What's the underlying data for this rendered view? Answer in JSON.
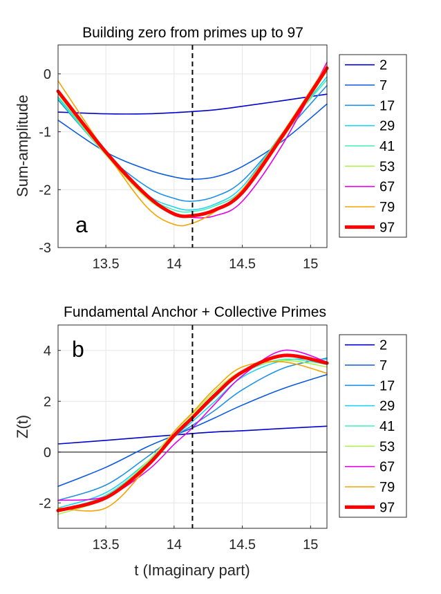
{
  "chart_data": [
    {
      "type": "line",
      "panel_label": "a",
      "title": "Building zero from primes up to 97",
      "xlabel": "",
      "ylabel": "Sum-amplitude",
      "xlim": [
        13.15,
        15.12
      ],
      "ylim": [
        -3,
        0.5
      ],
      "xticks": [
        "13.5",
        "14",
        "14.5",
        "15"
      ],
      "yticks": [
        "0",
        "-1",
        "-2",
        "-3"
      ],
      "x_values": [
        13.5,
        14,
        14.5,
        15
      ],
      "y_values": [
        0,
        -1,
        -2,
        -3
      ],
      "grid": true,
      "legend_position": "outside-right",
      "vline_x": 14.1347,
      "x": [
        13.15,
        13.5,
        13.8,
        14.0,
        14.134,
        14.3,
        14.5,
        14.8,
        15.12
      ],
      "series": [
        {
          "name": "2",
          "color": "#0000CD",
          "width": 1.6,
          "values": [
            -0.66,
            -0.69,
            -0.69,
            -0.67,
            -0.65,
            -0.62,
            -0.56,
            -0.46,
            -0.35
          ]
        },
        {
          "name": "7",
          "color": "#0A5AE0",
          "width": 1.6,
          "values": [
            -0.8,
            -1.35,
            -1.65,
            -1.78,
            -1.82,
            -1.78,
            -1.6,
            -1.15,
            -0.52
          ]
        },
        {
          "name": "17",
          "color": "#1E90E8",
          "width": 1.6,
          "values": [
            -0.45,
            -1.38,
            -1.95,
            -2.15,
            -2.2,
            -2.12,
            -1.85,
            -1.05,
            -0.2
          ]
        },
        {
          "name": "29",
          "color": "#22D3F0",
          "width": 1.6,
          "values": [
            -0.4,
            -1.38,
            -2.08,
            -2.3,
            -2.35,
            -2.25,
            -1.95,
            -1.0,
            -0.05
          ]
        },
        {
          "name": "41",
          "color": "#40F0B0",
          "width": 1.6,
          "values": [
            -0.42,
            -1.4,
            -2.1,
            -2.35,
            -2.38,
            -2.28,
            -2.0,
            -1.0,
            -0.1
          ]
        },
        {
          "name": "53",
          "color": "#B0F050",
          "width": 1.6,
          "values": [
            -0.35,
            -1.4,
            -2.15,
            -2.42,
            -2.45,
            -2.35,
            -2.05,
            -1.1,
            0.05
          ]
        },
        {
          "name": "67",
          "color": "#E600E6",
          "width": 1.6,
          "values": [
            -0.3,
            -1.35,
            -2.1,
            -2.4,
            -2.48,
            -2.45,
            -2.2,
            -1.2,
            0.2
          ]
        },
        {
          "name": "79",
          "color": "#F5A300",
          "width": 1.6,
          "values": [
            -0.12,
            -1.35,
            -2.3,
            -2.6,
            -2.58,
            -2.38,
            -2.0,
            -1.0,
            0.15
          ]
        },
        {
          "name": "97",
          "color": "#FF0000",
          "width": 5,
          "values": [
            -0.3,
            -1.35,
            -2.1,
            -2.42,
            -2.45,
            -2.35,
            -2.05,
            -1.05,
            0.1
          ]
        }
      ]
    },
    {
      "type": "line",
      "panel_label": "b",
      "title": "Fundamental Anchor + Collective Primes",
      "xlabel": "t (Imaginary part)",
      "ylabel": "Z(t)",
      "xlim": [
        13.15,
        15.12
      ],
      "ylim": [
        -3,
        5
      ],
      "xticks": [
        "13.5",
        "14",
        "14.5",
        "15"
      ],
      "yticks": [
        "4",
        "2",
        "0",
        "-2"
      ],
      "x_values": [
        13.5,
        14,
        14.5,
        15
      ],
      "y_values": [
        4,
        2,
        0,
        -2
      ],
      "grid": true,
      "legend_position": "outside-right",
      "vline_x": 14.1347,
      "hline_y": 0,
      "x": [
        13.15,
        13.5,
        13.8,
        14.0,
        14.134,
        14.3,
        14.5,
        14.8,
        15.12
      ],
      "series": [
        {
          "name": "2",
          "color": "#0000CD",
          "width": 1.6,
          "values": [
            0.32,
            0.46,
            0.59,
            0.67,
            0.73,
            0.79,
            0.84,
            0.93,
            1.02
          ]
        },
        {
          "name": "7",
          "color": "#0A5AE0",
          "width": 1.6,
          "values": [
            -1.35,
            -0.6,
            0.2,
            0.65,
            0.95,
            1.35,
            1.85,
            2.5,
            3.05
          ]
        },
        {
          "name": "17",
          "color": "#1E90E8",
          "width": 1.6,
          "values": [
            -1.9,
            -1.3,
            -0.2,
            0.6,
            1.05,
            1.65,
            2.45,
            3.3,
            3.7
          ]
        },
        {
          "name": "29",
          "color": "#22D3F0",
          "width": 1.6,
          "values": [
            -2.2,
            -1.6,
            -0.4,
            0.6,
            1.2,
            2.0,
            2.95,
            3.6,
            3.65
          ]
        },
        {
          "name": "41",
          "color": "#40F0B0",
          "width": 1.6,
          "values": [
            -2.3,
            -1.7,
            -0.45,
            0.65,
            1.3,
            2.15,
            3.1,
            3.65,
            3.45
          ]
        },
        {
          "name": "53",
          "color": "#B0F050",
          "width": 1.6,
          "values": [
            -2.45,
            -1.8,
            -0.4,
            0.8,
            1.5,
            2.4,
            3.2,
            3.6,
            3.35
          ]
        },
        {
          "name": "67",
          "color": "#E600E6",
          "width": 1.6,
          "values": [
            -1.9,
            -1.75,
            -0.75,
            0.3,
            0.95,
            1.9,
            3.0,
            4.0,
            3.55
          ]
        },
        {
          "name": "79",
          "color": "#F5A300",
          "width": 1.6,
          "values": [
            -2.2,
            -2.2,
            -0.6,
            0.8,
            1.55,
            2.5,
            3.35,
            3.55,
            3.1
          ]
        },
        {
          "name": "97",
          "color": "#FF0000",
          "width": 5,
          "values": [
            -2.3,
            -1.8,
            -0.55,
            0.65,
            1.35,
            2.25,
            3.15,
            3.8,
            3.5
          ]
        }
      ]
    }
  ]
}
